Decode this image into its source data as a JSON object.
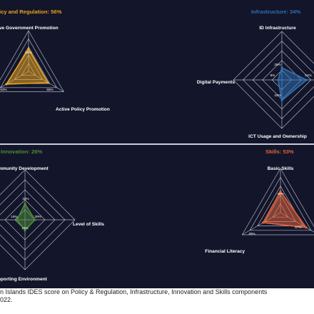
{
  "caption": {
    "line1": "n Islands IDES score on Policy & Regulation, Infrastructure, Innovation and Skills components",
    "line2": "022."
  },
  "chart_data": [
    {
      "type": "radar",
      "title": "icy and Regulation: 56%",
      "color": "#e8a21e",
      "axes": [
        "ive Government Promotion",
        "Active Policy Promotion",
        ""
      ],
      "values": [
        55,
        55,
        63
      ],
      "value_labels": [
        "55%",
        "55%",
        "63%"
      ],
      "rlim": [
        0,
        100
      ]
    },
    {
      "type": "radar",
      "title": "Infrastructure: 34%",
      "color": "#2f6fb0",
      "axes": [
        "ID Infrastructure",
        "",
        "ICT Usage and Ownership",
        "Digital Payments"
      ],
      "values": [
        25,
        51,
        42,
        8
      ],
      "value_labels": [
        "25%",
        "51%",
        "42%",
        "8%"
      ],
      "rlim": [
        0,
        100
      ]
    },
    {
      "type": "radar",
      "title": "Innovation: 26%",
      "color": "#4d8a3a",
      "axes": [
        "mmunity Development",
        "Level of Skills",
        "pporting Environment",
        ""
      ],
      "values": [
        32,
        20,
        21,
        16
      ],
      "value_labels": [
        "32%",
        "20%",
        "21%",
        "16%"
      ],
      "rlim": [
        0,
        100
      ]
    },
    {
      "type": "radar",
      "title": "Skills: 53%",
      "color": "#e2633a",
      "axes": [
        "Basic Skills",
        "",
        "Financial Literacy"
      ],
      "values": [
        48,
        67,
        45
      ],
      "value_labels": [
        "48%",
        "67%",
        "45%"
      ],
      "rlim": [
        0,
        100
      ]
    }
  ]
}
